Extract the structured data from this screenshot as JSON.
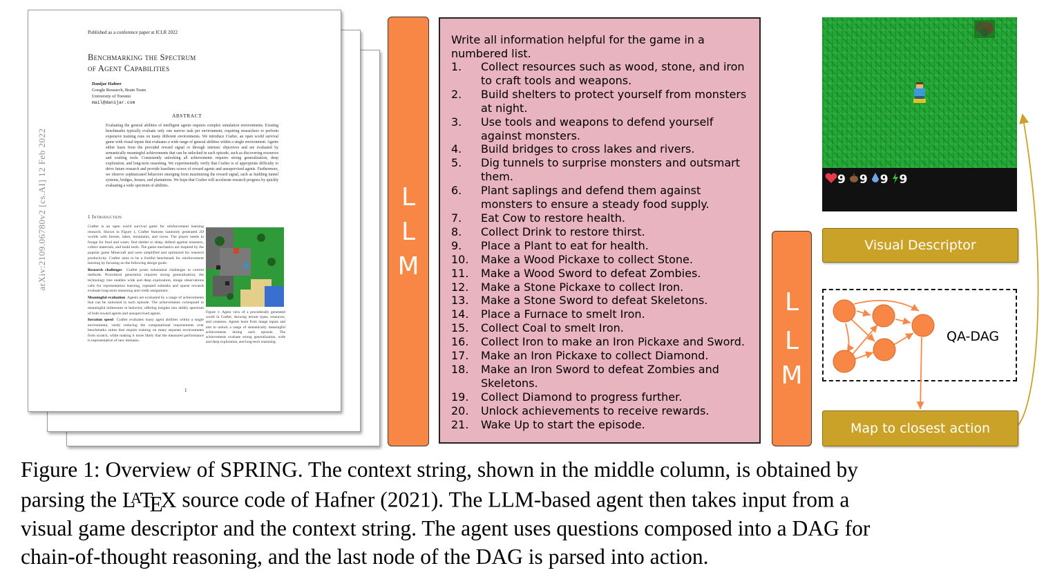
{
  "paper": {
    "header": "Published as a conference paper at ICLR 2022",
    "title_line1": "Benchmarking the Spectrum",
    "title_line2": "of Agent Capabilities",
    "author_name": "Danijar Hafner",
    "author_affil1": "Google Research, Brain Team",
    "author_affil2": "University of Toronto",
    "author_email": "mail@danijar.com",
    "abstract_heading": "ABSTRACT",
    "abstract": "Evaluating the general abilities of intelligent agents requires complex simulation environments. Existing benchmarks typically evaluate only one narrow task per environment, requiring researchers to perform expensive training runs on many different environments. We introduce Crafter, an open world survival game with visual inputs that evaluates a wide range of general abilities within a single environment. Agents either learn from the provided reward signal or through intrinsic objectives and are evaluated by semantically meaningful achievements that can be unlocked in each episode, such as discovering resources and crafting tools. Consistently unlocking all achievements requires strong generalization, deep exploration, and long-term reasoning. We experimentally verify that Crafter is of appropriate difficulty to drive future research and provide baselines scores of reward agents and unsupervised agents. Furthermore, we observe sophisticated behaviors emerging from maximizing the reward signal, such as building tunnel systems, bridges, houses, and plantations. We hope that Crafter will accelerate research progress by quickly evaluating a wide spectrum of abilities.",
    "intro_heading": "1   Introduction",
    "intro_para": "Crafter is an open world survival game for reinforcement learning research. Shown in Figure 1, Crafter features randomly generated 2D worlds with forests, lakes, mountains, and caves. The player needs to forage for food and water, find shelter to sleep, defend against monsters, collect materials, and build tools. The game mechanics are inspired by the popular game Minecraft and were simplified and optimized for research productivity. Crafter aims to be a fruitful benchmark for reinforcement learning by focusing on the following design goals:",
    "rc_title": "Research challenges",
    "rc_text": "Crafter poses substantial challenges to current methods. Procedural generation requires strong generalization, the technology tree enables wide and deep exploration, image observations calls for representation learning, repeated subtasks and sparse rewards evaluate long-term reasoning and credit assignment.",
    "me_title": "Meaningful evaluation",
    "me_text": "Agents are evaluated by a range of achievements that can be unlocked in each episode. The achievements correspond to meaningful milestones in behavior, offering insights into ability spectrum of both reward agents and unsupervised agents.",
    "is_title": "Iteration speed",
    "is_text": "Crafter evaluates many agent abilities within a single environment, vastly reducing the computational requirements over benchmarks suites that require training on many separate environments from scratch, while making it more likely that the measured performance is representative of new domains.",
    "fig_caption": "Figure 1: Agent view of a procedurally generated world in Crafter, showing terrain types, resources, and creatures. Agents learn from image inputs and aim to unlock a range of semantically meaningful achievements during each episode. The achievements evaluate strong generalization, wide and deep exploration, and long-term reasoning.",
    "page_number": "1",
    "arxiv_id": "arXiv:2109.06780v2  [cs.AI]  12 Feb 2022"
  },
  "llm_left": [
    "L",
    "L",
    "M"
  ],
  "llm_right": [
    "L",
    "L",
    "M"
  ],
  "context": {
    "intro": "Write all information helpful for the game in a numbered list.",
    "items": [
      {
        "num": "1.",
        "text": "Collect resources such as wood, stone, and iron to craft tools and weapons."
      },
      {
        "num": "2.",
        "text": "Build shelters to protect yourself from monsters at night."
      },
      {
        "num": "3.",
        "text": "Use tools and weapons to defend yourself against monsters."
      },
      {
        "num": "4.",
        "text": "Build bridges to cross lakes and rivers."
      },
      {
        "num": "5.",
        "text": "Dig tunnels to surprise monsters and outsmart them."
      },
      {
        "num": "6.",
        "text": "Plant saplings and defend them against monsters to ensure a steady food supply."
      },
      {
        "num": "7.",
        "text": "Eat Cow to restore health."
      },
      {
        "num": "8.",
        "text": "Collect Drink to restore thirst."
      },
      {
        "num": "9.",
        "text": "Place a Plant to eat for health."
      },
      {
        "num": "10.",
        "text": "Make a Wood Pickaxe to collect Stone."
      },
      {
        "num": "11.",
        "text": "Make a Wood Sword to defeat Zombies."
      },
      {
        "num": "12.",
        "text": "Make a Stone Pickaxe to collect Iron."
      },
      {
        "num": "13.",
        "text": "Make a Stone Sword to defeat Skeletons."
      },
      {
        "num": "14.",
        "text": "Place a Furnace to smelt Iron."
      },
      {
        "num": "15.",
        "text": "Collect Coal to smelt Iron."
      },
      {
        "num": "16.",
        "text": "Collect Iron to make an Iron Pickaxe and Sword."
      },
      {
        "num": "17.",
        "text": "Make an Iron Pickaxe to collect Diamond."
      },
      {
        "num": "18.",
        "text": "Make an Iron Sword to defeat Zombies and Skeletons."
      },
      {
        "num": "19.",
        "text": "Collect Diamond to progress further."
      },
      {
        "num": "20.",
        "text": "Unlock achievements to receive rewards."
      },
      {
        "num": "21.",
        "text": "Wake Up to start the episode."
      }
    ]
  },
  "game": {
    "hud": [
      {
        "icon": "heart-icon",
        "value": "9"
      },
      {
        "icon": "food-icon",
        "value": "9"
      },
      {
        "icon": "drink-icon",
        "value": "9"
      },
      {
        "icon": "energy-icon",
        "value": "9"
      }
    ]
  },
  "visual_descriptor": "Visual Descriptor",
  "qa_dag": "QA-DAG",
  "map_action": "Map to closest action",
  "colors": {
    "llm_orange": "#f88745",
    "context_pink": "#e8b4c0",
    "gold": "#c9a227",
    "dag_node": "#f88745",
    "arrow": "#c9a227",
    "grass": "#22a834"
  },
  "caption": {
    "line1": "Figure 1: Overview of SPRING. The context string, shown in the middle column, is obtained by",
    "line2_pre": "parsing the ",
    "line2_post": " source code of Hafner (2021).  The LLM-based agent then takes input from a",
    "line3": "visual game descriptor and the context string. The agent uses questions composed into a DAG for",
    "line4": "chain-of-thought reasoning, and the last node of the DAG is parsed into action."
  }
}
